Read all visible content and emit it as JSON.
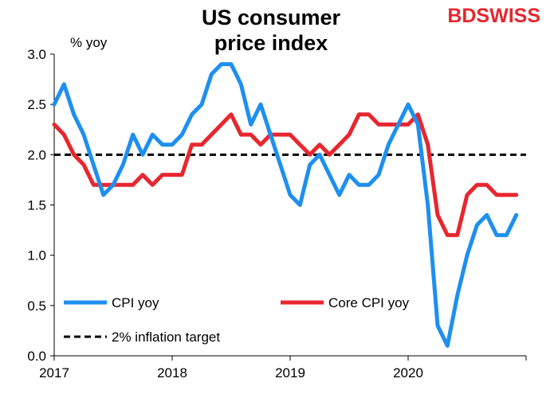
{
  "chart_data": {
    "type": "line",
    "title_line1": "US consumer",
    "title_line2": "price index",
    "ylabel": "% yoy",
    "ylim": [
      0,
      3
    ],
    "yticks": [
      "0.0",
      "0.5",
      "1.0",
      "1.5",
      "2.0",
      "2.5",
      "3.0"
    ],
    "xticks": [
      "2017",
      "2018",
      "2019",
      "2020"
    ],
    "x_start": "2017-01",
    "series": [
      {
        "name": "CPI yoy",
        "color": "#1e8ff0",
        "values": [
          2.5,
          2.7,
          2.4,
          2.2,
          1.9,
          1.6,
          1.7,
          1.9,
          2.2,
          2.0,
          2.2,
          2.1,
          2.1,
          2.2,
          2.4,
          2.5,
          2.8,
          2.9,
          2.9,
          2.7,
          2.3,
          2.5,
          2.2,
          1.9,
          1.6,
          1.5,
          1.9,
          2.0,
          1.8,
          1.6,
          1.8,
          1.7,
          1.7,
          1.8,
          2.1,
          2.3,
          2.5,
          2.3,
          1.5,
          0.3,
          0.1,
          0.6,
          1.0,
          1.3,
          1.4,
          1.2,
          1.2,
          1.4
        ]
      },
      {
        "name": "Core CPI yoy",
        "color": "#e8262e",
        "values": [
          2.3,
          2.2,
          2.0,
          1.9,
          1.7,
          1.7,
          1.7,
          1.7,
          1.7,
          1.8,
          1.7,
          1.8,
          1.8,
          1.8,
          2.1,
          2.1,
          2.2,
          2.3,
          2.4,
          2.2,
          2.2,
          2.1,
          2.2,
          2.2,
          2.2,
          2.1,
          2.0,
          2.1,
          2.0,
          2.1,
          2.2,
          2.4,
          2.4,
          2.3,
          2.3,
          2.3,
          2.3,
          2.4,
          2.1,
          1.4,
          1.2,
          1.2,
          1.6,
          1.7,
          1.7,
          1.6,
          1.6,
          1.6
        ]
      }
    ],
    "target": {
      "name": "2% inflation target",
      "value": 2.0,
      "color": "#000000"
    },
    "legend_placement": "bottom-left",
    "grid": false
  },
  "logo": {
    "part1": "BD",
    "part2": "SWISS"
  }
}
